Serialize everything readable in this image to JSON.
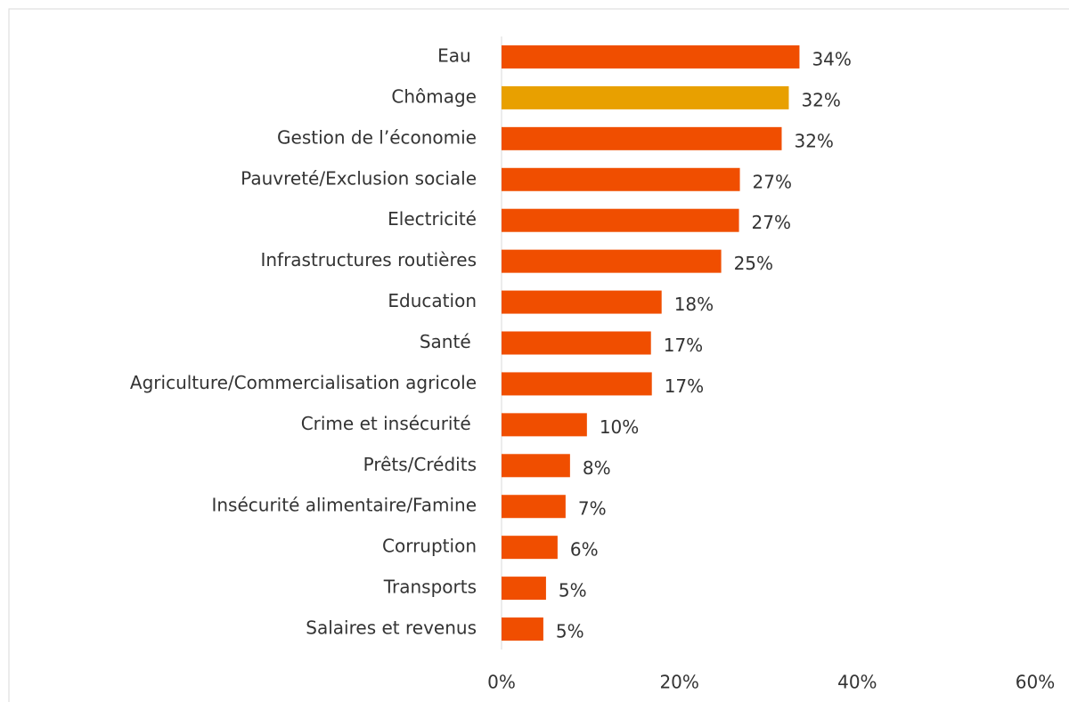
{
  "chart_data": {
    "type": "hbar",
    "categories": [
      "Eau ",
      "Chômage",
      "Gestion de l’économie",
      "Pauvreté/Exclusion sociale",
      "Electricité",
      "Infrastructures routières",
      "Education",
      "Santé ",
      "Agriculture/Commercialisation agricole",
      "Crime et insécurité ",
      "Prêts/Crédits",
      "Insécurité alimentaire/Famine",
      "Corruption",
      "Transports",
      "Salaires et revenus"
    ],
    "values": [
      33.5,
      32.3,
      31.5,
      26.8,
      26.7,
      24.7,
      18.0,
      16.8,
      16.9,
      9.6,
      7.7,
      7.2,
      6.3,
      5.0,
      4.7
    ],
    "value_labels": [
      "34%",
      "32%",
      "32%",
      "27%",
      "27%",
      "25%",
      "18%",
      "17%",
      "17%",
      "10%",
      "8%",
      "7%",
      "6%",
      "5%",
      "5%"
    ],
    "colors": [
      "#f04e00",
      "#e8a000",
      "#f04e00",
      "#f04e00",
      "#f04e00",
      "#f04e00",
      "#f04e00",
      "#f04e00",
      "#f04e00",
      "#f04e00",
      "#f04e00",
      "#f04e00",
      "#f04e00",
      "#f04e00",
      "#f04e00"
    ],
    "xlim": [
      0,
      60
    ],
    "xticks": [
      {
        "value": 0,
        "label": "0%"
      },
      {
        "value": 20,
        "label": "20%"
      },
      {
        "value": 40,
        "label": "40%"
      },
      {
        "value": 60,
        "label": "60%"
      }
    ],
    "grid": false
  }
}
